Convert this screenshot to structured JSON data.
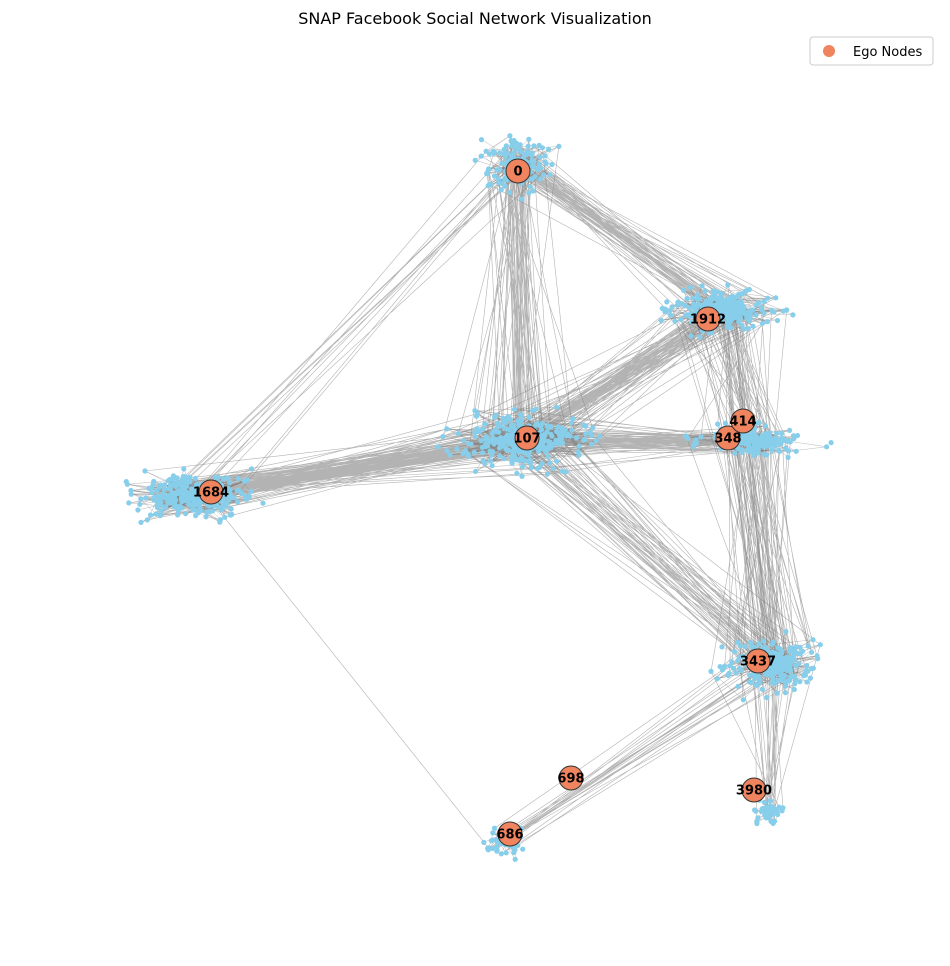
{
  "chart_data": {
    "type": "network",
    "title": "SNAP Facebook Social Network Visualization",
    "legend": {
      "position": "top-right",
      "entries": [
        {
          "label": "Ego Nodes",
          "color": "#f0845f"
        }
      ]
    },
    "colors": {
      "node": "#87ceeb",
      "ego": "#f0845f",
      "edge": "#808080"
    },
    "ego_nodes": [
      {
        "id": "0"
      },
      {
        "id": "107"
      },
      {
        "id": "348"
      },
      {
        "id": "414"
      },
      {
        "id": "686"
      },
      {
        "id": "698"
      },
      {
        "id": "1684"
      },
      {
        "id": "1912"
      },
      {
        "id": "3437"
      },
      {
        "id": "3980"
      }
    ]
  }
}
